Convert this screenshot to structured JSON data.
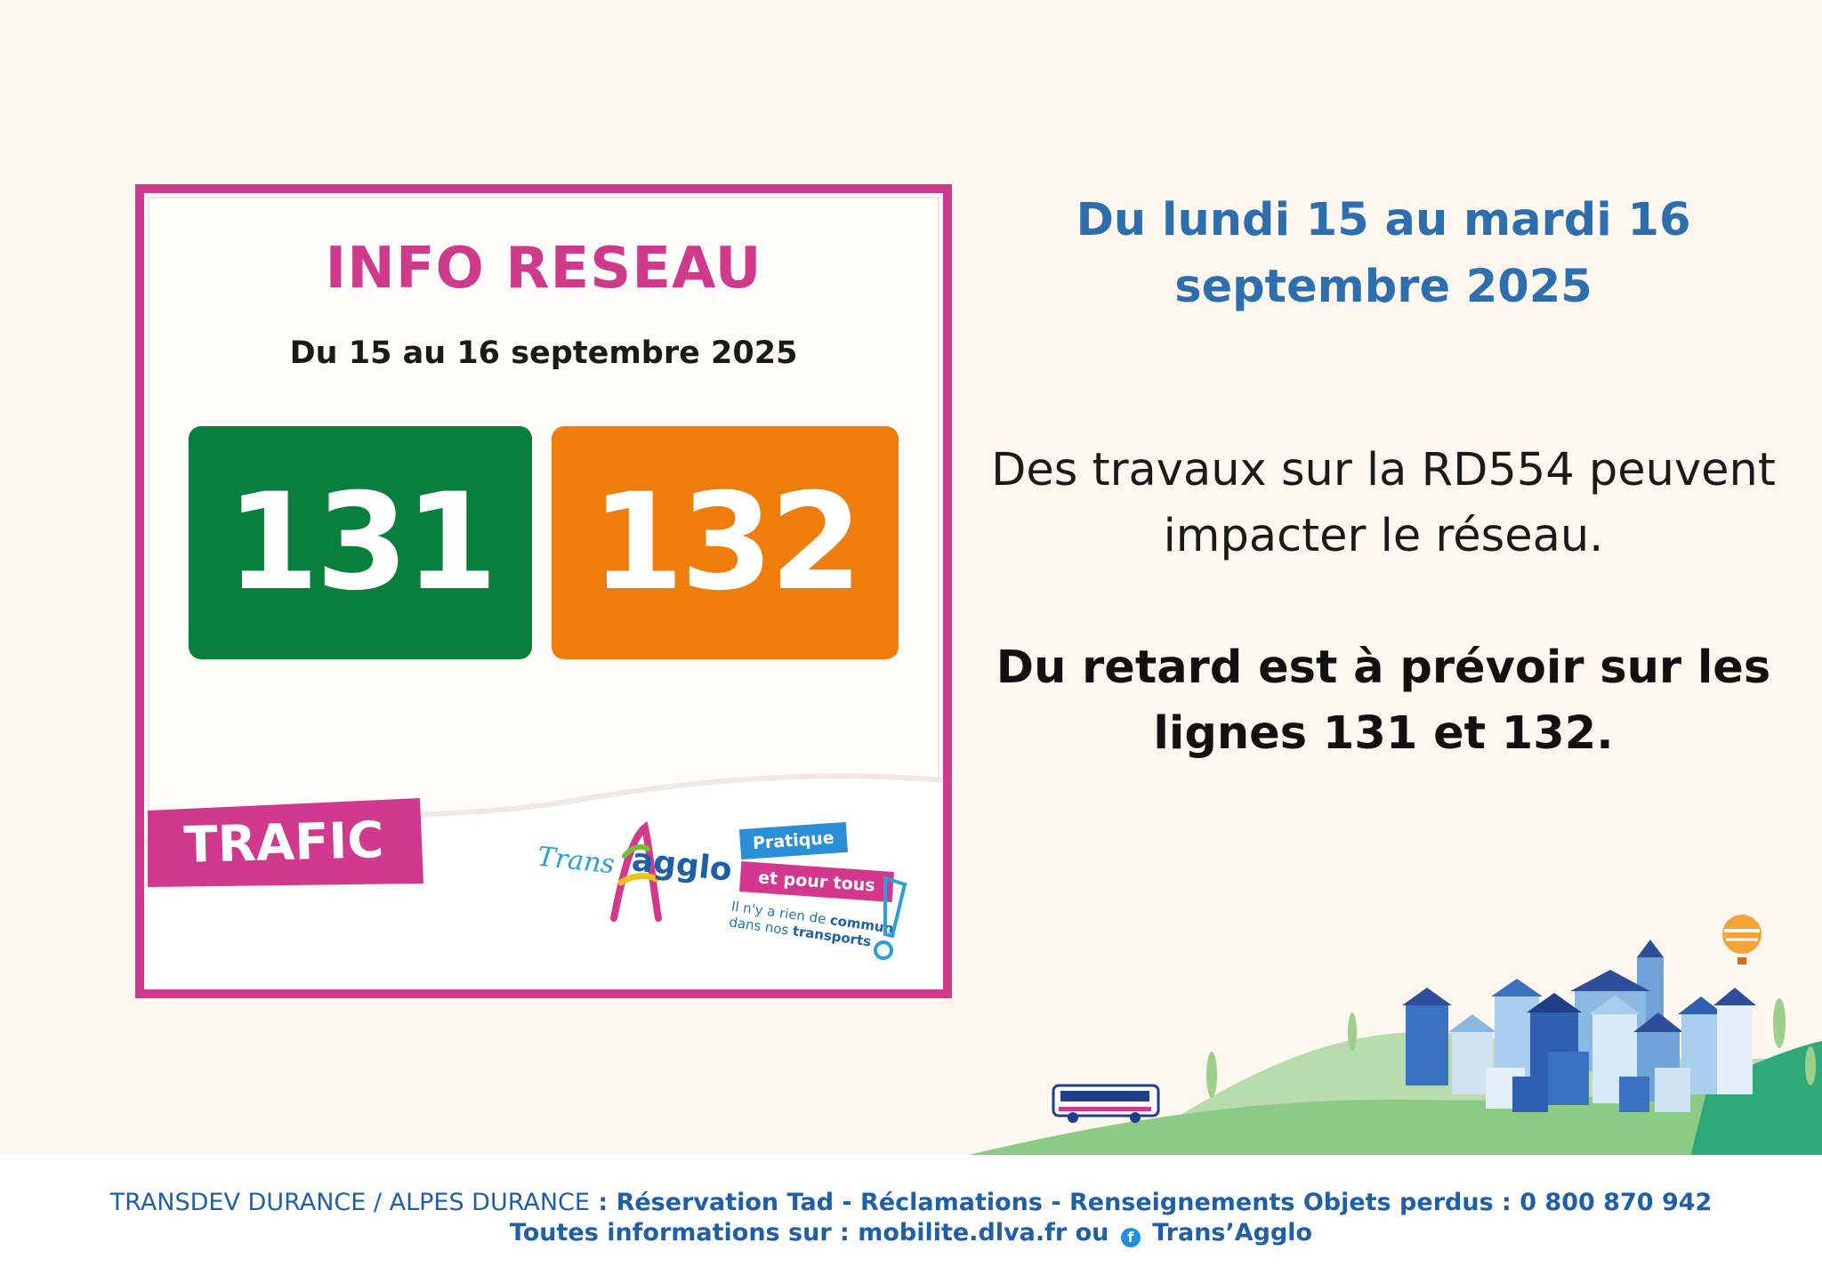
{
  "poster": {
    "title": "INFO RESEAU",
    "subtitle": "Du 15 au 16 septembre 2025",
    "lines": [
      {
        "number": "131",
        "color": "#087f3d"
      },
      {
        "number": "132",
        "color": "#ef7d0c"
      }
    ],
    "tag": "TRAFIC",
    "logo": {
      "word_left": "Trans",
      "word_right": "agglo",
      "pill_top": "Pratique",
      "pill_bottom": "et pour tous",
      "tagline_a": "Il n'y a rien de",
      "tagline_a_bold": "commun",
      "tagline_b": "dans nos",
      "tagline_b_bold": "transports"
    }
  },
  "notice": {
    "date_heading": "Du lundi 15 au mardi 16 septembre 2025",
    "message": "Des travaux sur la RD554  peuvent impacter le réseau.",
    "delay": "Du retard est à prévoir sur les lignes 131 et 132."
  },
  "footer": {
    "org": "TRANSDEV DURANCE / ALPES DURANCE",
    "services": " : Réservation Tad - Réclamations - Renseignements Objets perdus : 0 800 870 942",
    "info_prefix": "Toutes informations sur : mobilite.dlva.fr ou",
    "facebook_icon": "facebook-icon",
    "facebook_name": "Trans’Agglo"
  },
  "colors": {
    "pink": "#d0398d",
    "blue_heading": "#2d6fae",
    "footer_blue": "#1f5fa8",
    "background": "#fdf7ef"
  }
}
